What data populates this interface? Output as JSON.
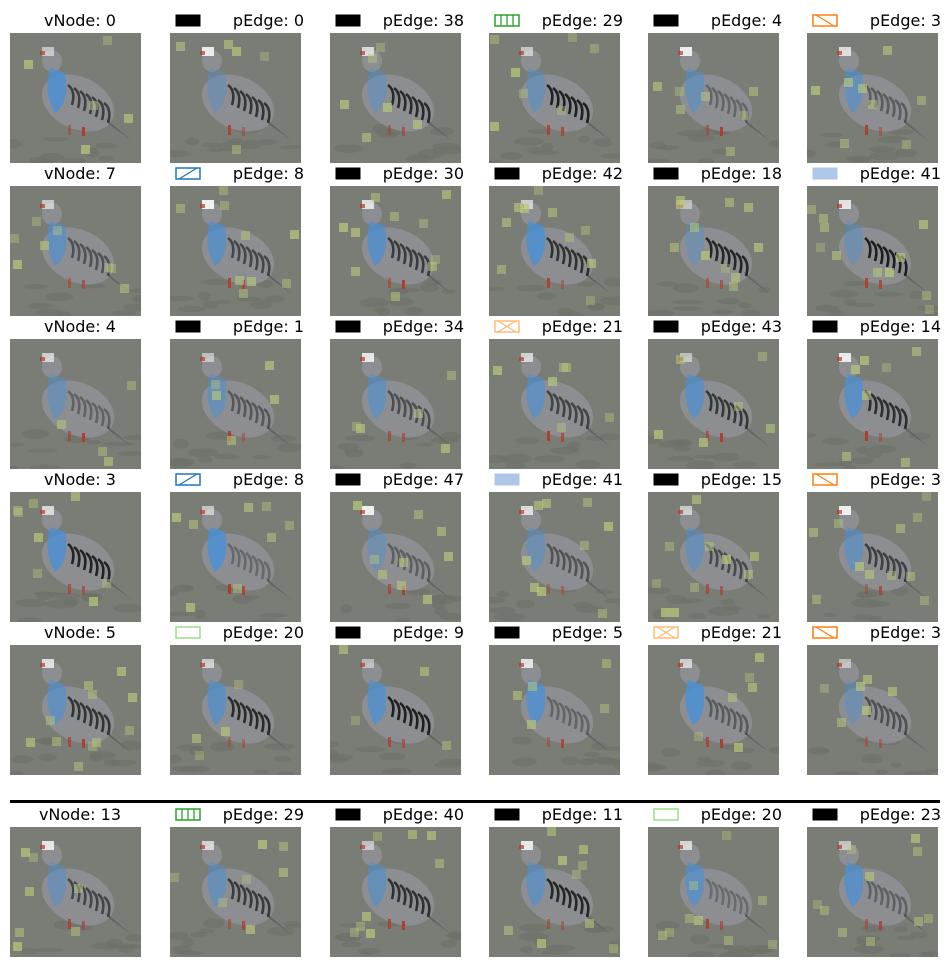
{
  "rows": [
    {
      "cells": [
        {
          "kind": "vnode",
          "label": "vNode:",
          "num": "0",
          "variant": 0
        },
        {
          "kind": "pedge",
          "label": "pEdge:",
          "num": "0",
          "swatch": {
            "style": "solid",
            "color": "#000000"
          },
          "variant": 1
        },
        {
          "kind": "pedge",
          "label": "pEdge:",
          "num": "38",
          "swatch": {
            "style": "solid",
            "color": "#000000"
          },
          "variant": 2
        },
        {
          "kind": "pedge",
          "label": "pEdge:",
          "num": "29",
          "swatch": {
            "style": "vhatch",
            "color": "#2ca02c"
          },
          "variant": 3
        },
        {
          "kind": "pedge",
          "label": "pEdge:",
          "num": "4",
          "swatch": {
            "style": "solid",
            "color": "#000000"
          },
          "variant": 4
        },
        {
          "kind": "pedge",
          "label": "pEdge:",
          "num": "3",
          "swatch": {
            "style": "backslash",
            "color": "#ff7f0e"
          },
          "variant": 5
        }
      ]
    },
    {
      "cells": [
        {
          "kind": "vnode",
          "label": "vNode:",
          "num": "7",
          "variant": 6
        },
        {
          "kind": "pedge",
          "label": "pEdge:",
          "num": "8",
          "swatch": {
            "style": "slash",
            "color": "#1f77b4"
          },
          "variant": 7
        },
        {
          "kind": "pedge",
          "label": "pEdge:",
          "num": "30",
          "swatch": {
            "style": "solid",
            "color": "#000000"
          },
          "variant": 8
        },
        {
          "kind": "pedge",
          "label": "pEdge:",
          "num": "42",
          "swatch": {
            "style": "solid",
            "color": "#000000"
          },
          "variant": 9
        },
        {
          "kind": "pedge",
          "label": "pEdge:",
          "num": "18",
          "swatch": {
            "style": "solid",
            "color": "#000000"
          },
          "variant": 10
        },
        {
          "kind": "pedge",
          "label": "pEdge:",
          "num": "41",
          "swatch": {
            "style": "fill",
            "color": "#aec7e8"
          },
          "variant": 11
        }
      ]
    },
    {
      "cells": [
        {
          "kind": "vnode",
          "label": "vNode:",
          "num": "4",
          "variant": 12
        },
        {
          "kind": "pedge",
          "label": "pEdge:",
          "num": "1",
          "swatch": {
            "style": "solid",
            "color": "#000000"
          },
          "variant": 13
        },
        {
          "kind": "pedge",
          "label": "pEdge:",
          "num": "34",
          "swatch": {
            "style": "solid",
            "color": "#000000"
          },
          "variant": 14
        },
        {
          "kind": "pedge",
          "label": "pEdge:",
          "num": "21",
          "swatch": {
            "style": "cross",
            "color": "#ffbb78"
          },
          "variant": 15
        },
        {
          "kind": "pedge",
          "label": "pEdge:",
          "num": "43",
          "swatch": {
            "style": "solid",
            "color": "#000000"
          },
          "variant": 16
        },
        {
          "kind": "pedge",
          "label": "pEdge:",
          "num": "14",
          "swatch": {
            "style": "solid",
            "color": "#000000"
          },
          "variant": 17
        }
      ]
    },
    {
      "cells": [
        {
          "kind": "vnode",
          "label": "vNode:",
          "num": "3",
          "variant": 18
        },
        {
          "kind": "pedge",
          "label": "pEdge:",
          "num": "8",
          "swatch": {
            "style": "slash",
            "color": "#1f77b4"
          },
          "variant": 19
        },
        {
          "kind": "pedge",
          "label": "pEdge:",
          "num": "47",
          "swatch": {
            "style": "solid",
            "color": "#000000"
          },
          "variant": 20
        },
        {
          "kind": "pedge",
          "label": "pEdge:",
          "num": "41",
          "swatch": {
            "style": "fill",
            "color": "#aec7e8"
          },
          "variant": 21
        },
        {
          "kind": "pedge",
          "label": "pEdge:",
          "num": "15",
          "swatch": {
            "style": "solid",
            "color": "#000000"
          },
          "variant": 22
        },
        {
          "kind": "pedge",
          "label": "pEdge:",
          "num": "3",
          "swatch": {
            "style": "backslash",
            "color": "#ff7f0e"
          },
          "variant": 23
        }
      ]
    },
    {
      "cells": [
        {
          "kind": "vnode",
          "label": "vNode:",
          "num": "5",
          "variant": 24
        },
        {
          "kind": "pedge",
          "label": "pEdge:",
          "num": "20",
          "swatch": {
            "style": "outline",
            "color": "#98df8a"
          },
          "variant": 25
        },
        {
          "kind": "pedge",
          "label": "pEdge:",
          "num": "9",
          "swatch": {
            "style": "solid",
            "color": "#000000"
          },
          "variant": 26
        },
        {
          "kind": "pedge",
          "label": "pEdge:",
          "num": "5",
          "swatch": {
            "style": "solid",
            "color": "#000000"
          },
          "variant": 27
        },
        {
          "kind": "pedge",
          "label": "pEdge:",
          "num": "21",
          "swatch": {
            "style": "cross",
            "color": "#ffbb78"
          },
          "variant": 28
        },
        {
          "kind": "pedge",
          "label": "pEdge:",
          "num": "3",
          "swatch": {
            "style": "backslash",
            "color": "#ff7f0e"
          },
          "variant": 29
        }
      ]
    },
    {
      "cells": [
        {
          "kind": "vnode",
          "label": "vNode:",
          "num": "13",
          "variant": 30
        },
        {
          "kind": "pedge",
          "label": "pEdge:",
          "num": "29",
          "swatch": {
            "style": "vhatch",
            "color": "#2ca02c"
          },
          "variant": 31
        },
        {
          "kind": "pedge",
          "label": "pEdge:",
          "num": "40",
          "swatch": {
            "style": "solid",
            "color": "#000000"
          },
          "variant": 32
        },
        {
          "kind": "pedge",
          "label": "pEdge:",
          "num": "11",
          "swatch": {
            "style": "solid",
            "color": "#000000"
          },
          "variant": 33
        },
        {
          "kind": "pedge",
          "label": "pEdge:",
          "num": "20",
          "swatch": {
            "style": "outline",
            "color": "#98df8a"
          },
          "variant": 34
        },
        {
          "kind": "pedge",
          "label": "pEdge:",
          "num": "23",
          "swatch": {
            "style": "solid",
            "color": "#000000"
          },
          "variant": 35
        }
      ]
    }
  ],
  "colors": {
    "background": "#7a7d75",
    "bird_body": "#8e9096",
    "bird_blue": "#4a90d6",
    "bird_stripe": "#1c1c1c",
    "bird_red": "#b23a2a",
    "highlight": "#b7c77a"
  }
}
